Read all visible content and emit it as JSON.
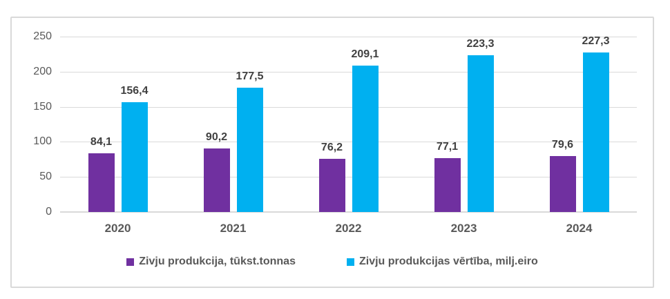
{
  "chart_data": {
    "type": "bar",
    "title": "",
    "xlabel": "",
    "ylabel": "",
    "categories": [
      "2020",
      "2021",
      "2022",
      "2023",
      "2024"
    ],
    "series": [
      {
        "name": "Zivju produkcija, tūkst.tonnas",
        "color": "#7030A0",
        "values": [
          84.1,
          90.2,
          76.2,
          77.1,
          79.6
        ],
        "labels": [
          "84,1",
          "90,2",
          "76,2",
          "77,1",
          "79,6"
        ]
      },
      {
        "name": "Zivju produkcijas vērtība, milj.eiro",
        "color": "#00B0F0",
        "values": [
          156.4,
          177.5,
          209.1,
          223.3,
          227.3
        ],
        "labels": [
          "156,4",
          "177,5",
          "209,1",
          "223,3",
          "227,3"
        ]
      }
    ],
    "ylim": [
      0,
      250
    ],
    "yticks": [
      0,
      50,
      100,
      150,
      200,
      250
    ],
    "grid": true,
    "legend_position": "bottom",
    "decimal_separator": ","
  },
  "styles": {
    "border_color": "#d9d9d9",
    "gridline_color": "#d9d9d9",
    "axis_label_color": "#595959",
    "data_label_color": "#404040",
    "legend_text_color": "#595959"
  }
}
